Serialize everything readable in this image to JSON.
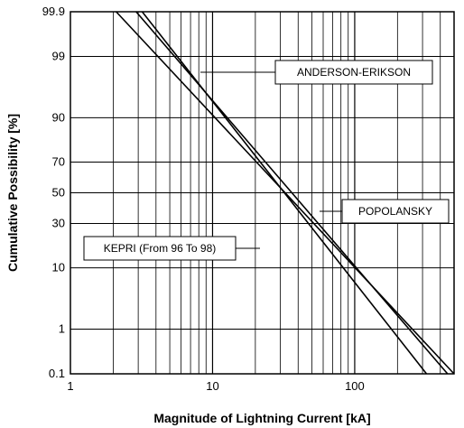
{
  "chart_data": {
    "type": "line",
    "xlabel": "Magnitude of Lightning Current [kA]",
    "ylabel": "Cumulative Possibility [%]",
    "x_scale": "log",
    "y_scale": "probability",
    "xlim": [
      1,
      500
    ],
    "ylim": [
      0.1,
      99.9
    ],
    "x_ticks": [
      "1",
      "10",
      "100"
    ],
    "x_tick_values": [
      1,
      10,
      100
    ],
    "y_ticks": [
      "0.1",
      "1",
      "10",
      "30",
      "50",
      "70",
      "90",
      "99",
      "99.9"
    ],
    "y_tick_values": [
      0.1,
      1,
      10,
      30,
      50,
      70,
      90,
      99,
      99.9
    ],
    "grid": true,
    "line_color": "#000000",
    "series": [
      {
        "name": "ANDERSON-ERIKSON",
        "x": [
          2.1,
          500
        ],
        "y": [
          99.9,
          0.1
        ]
      },
      {
        "name": "POPOLANSKY",
        "x": [
          2.9,
          450
        ],
        "y": [
          99.9,
          0.1
        ]
      },
      {
        "name": "KEPRI (From 96 To 98)",
        "x": [
          3.2,
          320
        ],
        "y": [
          99.9,
          0.1
        ]
      }
    ],
    "annotations": [
      {
        "text": "ANDERSON-ERIKSON"
      },
      {
        "text": "POPOLANSKY"
      },
      {
        "text": "KEPRI (From 96 To 98)"
      }
    ]
  }
}
